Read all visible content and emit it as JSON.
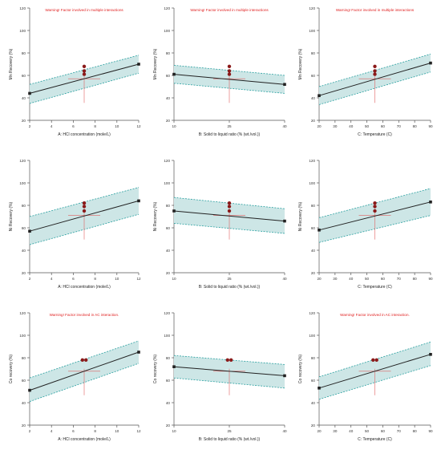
{
  "figure": {
    "colors": {
      "band_fill": "#cde6e6",
      "band_edge": "#2aa0a0",
      "line": "#222222",
      "warning": "#e02020",
      "point": "#8b1a1a",
      "crosshair": "#e06060",
      "axis": "#555555"
    }
  },
  "chart_data": [
    {
      "type": "line",
      "title": "Warning! Factor involved in multiple interactions",
      "xlabel": "A: HCl concentration (mole/L)",
      "ylabel": "Mn Recovery (%)",
      "xlim": [
        2,
        12
      ],
      "ylim": [
        20,
        120
      ],
      "xticks": [
        2,
        4,
        6,
        8,
        10,
        12
      ],
      "yticks": [
        20,
        40,
        60,
        80,
        100,
        120
      ],
      "line_x": [
        2,
        12
      ],
      "line_y": [
        44,
        70
      ],
      "band_low": [
        35,
        62
      ],
      "band_high": [
        52,
        78
      ],
      "points_x": [
        7,
        7,
        7
      ],
      "points_y": [
        68,
        64,
        61
      ],
      "center": [
        7,
        57
      ]
    },
    {
      "type": "line",
      "title": "Warning! Factor involved in multiple interactions",
      "xlabel": "B: Solid to liquid ratio (% (wt./vol.))",
      "ylabel": "Mn Recovery (%)",
      "xlim": [
        10,
        40
      ],
      "ylim": [
        20,
        120
      ],
      "xticks": [
        10,
        25,
        40
      ],
      "yticks": [
        20,
        40,
        60,
        80,
        100,
        120
      ],
      "line_x": [
        10,
        40
      ],
      "line_y": [
        61,
        52
      ],
      "band_low": [
        53,
        44
      ],
      "band_high": [
        69,
        60
      ],
      "points_x": [
        25,
        25,
        25
      ],
      "points_y": [
        68,
        64,
        61
      ],
      "center": [
        25,
        57
      ]
    },
    {
      "type": "line",
      "title": "Warning! Factor involved in multiple interactions",
      "xlabel": "C: Temperature (C)",
      "ylabel": "Mn Recovery (%)",
      "xlim": [
        20,
        90
      ],
      "ylim": [
        20,
        120
      ],
      "xticks": [
        20,
        30,
        40,
        50,
        60,
        70,
        80,
        90
      ],
      "yticks": [
        20,
        40,
        60,
        80,
        100,
        120
      ],
      "line_x": [
        20,
        90
      ],
      "line_y": [
        42,
        71
      ],
      "band_low": [
        34,
        63
      ],
      "band_high": [
        50,
        79
      ],
      "points_x": [
        55,
        55,
        55
      ],
      "points_y": [
        68,
        64,
        61
      ],
      "center": [
        55,
        57
      ]
    },
    {
      "type": "line",
      "title": "",
      "xlabel": "A: HCl concentration (mole/L)",
      "ylabel": "Ni Recovery (%)",
      "xlim": [
        2,
        12
      ],
      "ylim": [
        20,
        120
      ],
      "xticks": [
        2,
        4,
        6,
        8,
        10,
        12
      ],
      "yticks": [
        20,
        40,
        60,
        80,
        100,
        120
      ],
      "line_x": [
        2,
        12
      ],
      "line_y": [
        57,
        84
      ],
      "band_low": [
        45,
        72
      ],
      "band_high": [
        70,
        96
      ],
      "points_x": [
        7,
        7,
        7
      ],
      "points_y": [
        82,
        79,
        75
      ],
      "center": [
        7,
        71
      ]
    },
    {
      "type": "line",
      "title": "",
      "xlabel": "B: Solid to liquid ratio (% (wt./vol.))",
      "ylabel": "Ni Recovery (%)",
      "xlim": [
        10,
        40
      ],
      "ylim": [
        20,
        120
      ],
      "xticks": [
        10,
        25,
        40
      ],
      "yticks": [
        20,
        40,
        60,
        80,
        100,
        120
      ],
      "line_x": [
        10,
        40
      ],
      "line_y": [
        75,
        66
      ],
      "band_low": [
        64,
        55
      ],
      "band_high": [
        87,
        77
      ],
      "points_x": [
        25,
        25,
        25
      ],
      "points_y": [
        82,
        79,
        75
      ],
      "center": [
        25,
        71
      ]
    },
    {
      "type": "line",
      "title": "",
      "xlabel": "C: Temperature (C)",
      "ylabel": "Ni Recovery (%)",
      "xlim": [
        20,
        90
      ],
      "ylim": [
        20,
        120
      ],
      "xticks": [
        20,
        30,
        40,
        50,
        60,
        70,
        80,
        90
      ],
      "yticks": [
        20,
        40,
        60,
        80,
        100,
        120
      ],
      "line_x": [
        20,
        90
      ],
      "line_y": [
        58,
        83
      ],
      "band_low": [
        47,
        71
      ],
      "band_high": [
        69,
        95
      ],
      "points_x": [
        55,
        55,
        55
      ],
      "points_y": [
        82,
        79,
        75
      ],
      "center": [
        55,
        71
      ]
    },
    {
      "type": "line",
      "title": "Warning! Factor involved in AC interaction.",
      "xlabel": "A: HCl concentration (mole/L)",
      "ylabel": "Co recovery (%)",
      "xlim": [
        2,
        12
      ],
      "ylim": [
        20,
        120
      ],
      "xticks": [
        2,
        4,
        6,
        8,
        10,
        12
      ],
      "yticks": [
        20,
        40,
        60,
        80,
        100,
        120
      ],
      "line_x": [
        2,
        12
      ],
      "line_y": [
        51,
        85
      ],
      "band_low": [
        41,
        75
      ],
      "band_high": [
        62,
        95
      ],
      "points_x": [
        7,
        7
      ],
      "points_y": [
        78,
        78
      ],
      "center": [
        7,
        68
      ]
    },
    {
      "type": "line",
      "title": "",
      "xlabel": "B: Solid to liquid ratio (% (wt./vol.))",
      "ylabel": "Co recovery (%)",
      "xlim": [
        10,
        40
      ],
      "ylim": [
        20,
        120
      ],
      "xticks": [
        10,
        25,
        40
      ],
      "yticks": [
        20,
        40,
        60,
        80,
        100,
        120
      ],
      "line_x": [
        10,
        40
      ],
      "line_y": [
        72,
        64
      ],
      "band_low": [
        62,
        53
      ],
      "band_high": [
        82,
        74
      ],
      "points_x": [
        25,
        25
      ],
      "points_y": [
        78,
        78
      ],
      "center": [
        25,
        68
      ]
    },
    {
      "type": "line",
      "title": "Warning! Factor involved in AC interaction.",
      "xlabel": "C: Temperature (C)",
      "ylabel": "Co recovery (%)",
      "xlim": [
        20,
        90
      ],
      "ylim": [
        20,
        120
      ],
      "xticks": [
        20,
        30,
        40,
        50,
        60,
        70,
        80,
        90
      ],
      "yticks": [
        20,
        40,
        60,
        80,
        100,
        120
      ],
      "line_x": [
        20,
        90
      ],
      "line_y": [
        53,
        83
      ],
      "band_low": [
        43,
        73
      ],
      "band_high": [
        63,
        94
      ],
      "points_x": [
        55,
        55
      ],
      "points_y": [
        78,
        78
      ],
      "center": [
        55,
        68
      ]
    }
  ]
}
